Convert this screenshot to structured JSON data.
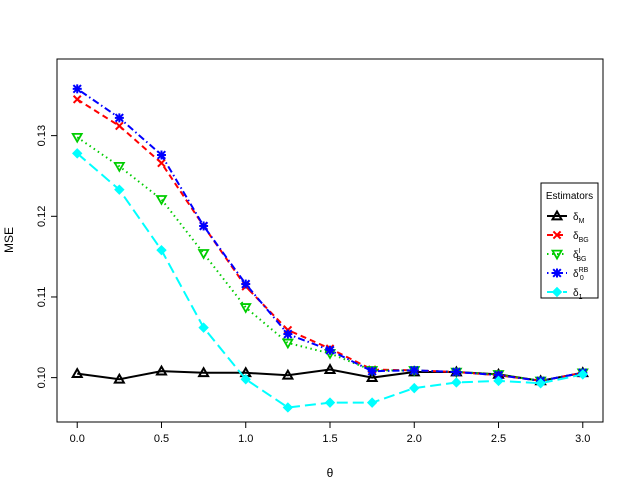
{
  "chart_data": {
    "type": "line",
    "xlabel": "θ",
    "ylabel": "MSE",
    "xlim": [
      -0.12,
      3.12
    ],
    "ylim": [
      0.0945,
      0.1395
    ],
    "xticks": [
      "0.0",
      "0.5",
      "1.0",
      "1.5",
      "2.0",
      "2.5",
      "3.0"
    ],
    "yticks": [
      "0.10",
      "0.11",
      "0.12",
      "0.13"
    ],
    "x": [
      0,
      0.25,
      0.5,
      0.75,
      1.0,
      1.25,
      1.5,
      1.75,
      2.0,
      2.25,
      2.5,
      2.75,
      3.0
    ],
    "legend": {
      "title": "Estimators",
      "placement": "right"
    },
    "series": [
      {
        "name": "δ_M",
        "base": "δ",
        "sub": "M",
        "sup": "",
        "color": "#000000",
        "dash": "solid",
        "marker": "triangle",
        "values": [
          0.1005,
          0.0998,
          0.1008,
          0.1006,
          0.1006,
          0.1003,
          0.101,
          0.1,
          0.1007,
          0.1007,
          0.1004,
          0.0996,
          0.1006
        ]
      },
      {
        "name": "δ_BG",
        "base": "δ",
        "sub": "BG",
        "sup": "",
        "color": "#ff0000",
        "dash": "dashed",
        "marker": "x",
        "values": [
          0.1345,
          0.1312,
          0.1266,
          0.1188,
          0.1113,
          0.1059,
          0.1036,
          0.101,
          0.1009,
          0.1007,
          0.1003,
          0.0996,
          0.1006
        ]
      },
      {
        "name": "δ_BG^I",
        "base": "δ",
        "sub": "BG",
        "sup": "I",
        "color": "#00cd00",
        "dash": "dotted",
        "marker": "triangle-down",
        "values": [
          0.1298,
          0.1262,
          0.1221,
          0.1154,
          0.1087,
          0.1043,
          0.103,
          0.1009,
          0.1009,
          0.1007,
          0.1004,
          0.0996,
          0.1006
        ]
      },
      {
        "name": "δ_0^RB",
        "base": "δ",
        "sub": "0",
        "sup": "RB",
        "color": "#0000ff",
        "dash": "dotdash",
        "marker": "asterisk",
        "values": [
          0.1358,
          0.1322,
          0.1276,
          0.1188,
          0.1116,
          0.1054,
          0.1034,
          0.1008,
          0.1009,
          0.1007,
          0.1003,
          0.0996,
          0.1006
        ]
      },
      {
        "name": "δ_1",
        "base": "δ",
        "sub": "1",
        "sup": "",
        "color": "#00ffff",
        "dash": "longdash",
        "marker": "diamond",
        "values": [
          0.1278,
          0.1233,
          0.1158,
          0.1062,
          0.0998,
          0.0963,
          0.0969,
          0.0969,
          0.0987,
          0.0994,
          0.0996,
          0.0993,
          0.1004
        ]
      }
    ]
  }
}
